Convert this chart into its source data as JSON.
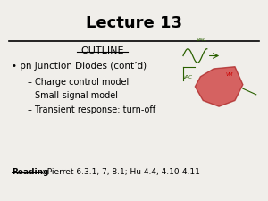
{
  "title": "Lecture 13",
  "outline_label": "OUTLINE",
  "bullet": "pn Junction Diodes (cont’d)",
  "sub_bullets": [
    "– Charge control model",
    "– Small-signal model",
    "– Transient response: turn-off"
  ],
  "reading_bold": "Reading",
  "reading_text": ": Pierret 6.3.1, 7, 8.1; Hu 4.4, 4.10-4.11",
  "bg_color": "#f0eeea",
  "title_color": "#000000",
  "text_color": "#000000",
  "line_color": "#000000"
}
